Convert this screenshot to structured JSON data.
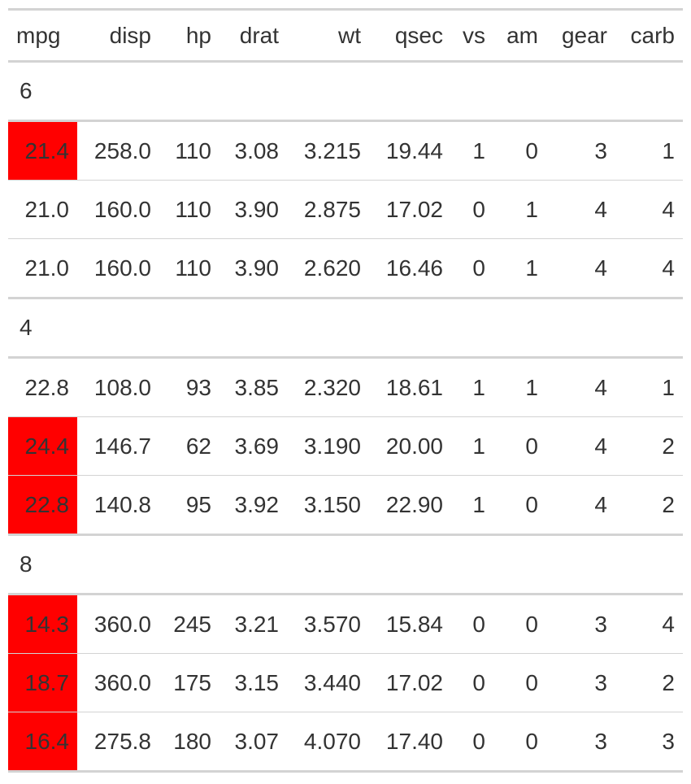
{
  "columns": [
    "mpg",
    "disp",
    "hp",
    "drat",
    "wt",
    "qsec",
    "vs",
    "am",
    "gear",
    "carb"
  ],
  "highlight_color": "#ff0000",
  "groups": [
    {
      "label": "6",
      "rows": [
        {
          "cells": [
            "21.4",
            "258.0",
            "110",
            "3.08",
            "3.215",
            "19.44",
            "1",
            "0",
            "3",
            "1"
          ],
          "highlight_mpg": true
        },
        {
          "cells": [
            "21.0",
            "160.0",
            "110",
            "3.90",
            "2.875",
            "17.02",
            "0",
            "1",
            "4",
            "4"
          ],
          "highlight_mpg": false
        },
        {
          "cells": [
            "21.0",
            "160.0",
            "110",
            "3.90",
            "2.620",
            "16.46",
            "0",
            "1",
            "4",
            "4"
          ],
          "highlight_mpg": false
        }
      ]
    },
    {
      "label": "4",
      "rows": [
        {
          "cells": [
            "22.8",
            "108.0",
            "93",
            "3.85",
            "2.320",
            "18.61",
            "1",
            "1",
            "4",
            "1"
          ],
          "highlight_mpg": false
        },
        {
          "cells": [
            "24.4",
            "146.7",
            "62",
            "3.69",
            "3.190",
            "20.00",
            "1",
            "0",
            "4",
            "2"
          ],
          "highlight_mpg": true
        },
        {
          "cells": [
            "22.8",
            "140.8",
            "95",
            "3.92",
            "3.150",
            "22.90",
            "1",
            "0",
            "4",
            "2"
          ],
          "highlight_mpg": true
        }
      ]
    },
    {
      "label": "8",
      "rows": [
        {
          "cells": [
            "14.3",
            "360.0",
            "245",
            "3.21",
            "3.570",
            "15.84",
            "0",
            "0",
            "3",
            "4"
          ],
          "highlight_mpg": true
        },
        {
          "cells": [
            "18.7",
            "360.0",
            "175",
            "3.15",
            "3.440",
            "17.02",
            "0",
            "0",
            "3",
            "2"
          ],
          "highlight_mpg": true
        },
        {
          "cells": [
            "16.4",
            "275.8",
            "180",
            "3.07",
            "4.070",
            "17.40",
            "0",
            "0",
            "3",
            "3"
          ],
          "highlight_mpg": true
        }
      ]
    }
  ]
}
